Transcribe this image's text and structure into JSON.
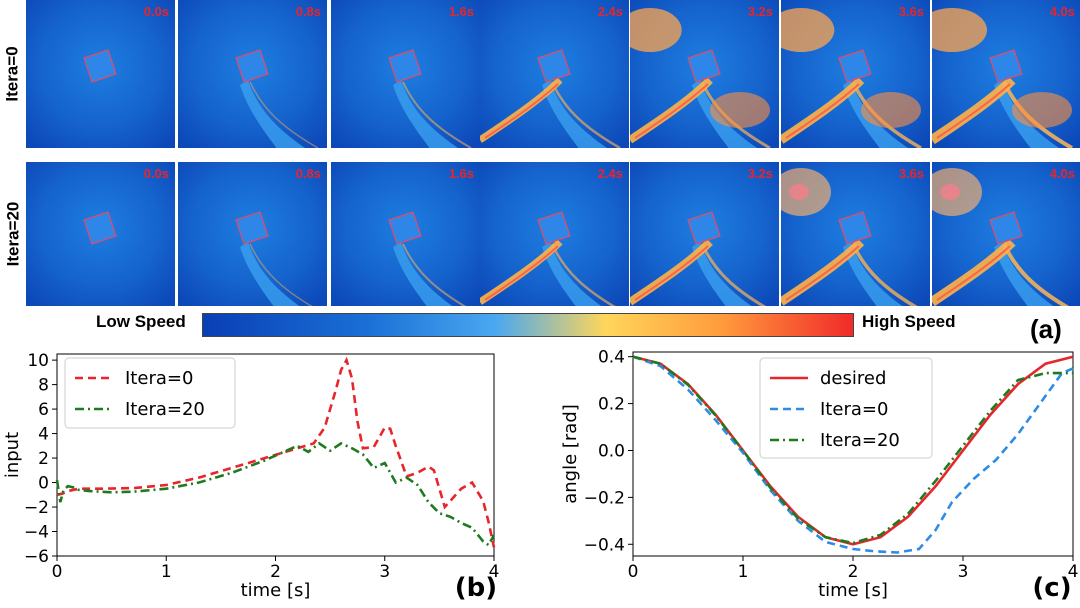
{
  "sim": {
    "rows": [
      {
        "label": "Itera=0",
        "times": [
          "0.0s",
          "0.8s",
          "1.6s",
          "2.4s",
          "3.2s",
          "3.6s",
          "4.0s"
        ]
      },
      {
        "label": "Itera=20",
        "times": [
          "0.0s",
          "0.8s",
          "1.6s",
          "2.4s",
          "3.2s",
          "3.6s",
          "4.0s"
        ]
      }
    ],
    "colorbar": {
      "low": "Low Speed",
      "high": "High Speed"
    },
    "panel": "(a)"
  },
  "colors": {
    "red": "#e8252b",
    "blue": "#2f8ce6",
    "green": "#1f7a1f",
    "field": "#0d4cc0"
  },
  "chart_data": [
    {
      "type": "line",
      "panel": "(b)",
      "xlabel": "time [s]",
      "ylabel": "input",
      "xlim": [
        0,
        4
      ],
      "ylim": [
        -6,
        10.5
      ],
      "xticks": [
        "0",
        "1",
        "2",
        "3",
        "4"
      ],
      "yticks": [
        "10",
        "8",
        "6",
        "4",
        "2",
        "0",
        "−2",
        "−4",
        "−6"
      ],
      "legend": "top-left",
      "series": [
        {
          "name": "Itera=0",
          "style": "dashed",
          "color": "#e8252b",
          "x": [
            0,
            0.05,
            0.1,
            0.2,
            0.4,
            0.7,
            1.0,
            1.3,
            1.6,
            1.9,
            2.2,
            2.35,
            2.45,
            2.55,
            2.6,
            2.65,
            2.7,
            2.75,
            2.8,
            2.9,
            3.0,
            3.05,
            3.1,
            3.2,
            3.3,
            3.4,
            3.45,
            3.55,
            3.6,
            3.7,
            3.8,
            3.9,
            3.95,
            4.0
          ],
          "y": [
            -1,
            -0.9,
            -0.7,
            -0.5,
            -0.5,
            -0.45,
            -0.2,
            0.4,
            1.2,
            2.0,
            2.8,
            3.2,
            4.5,
            7.5,
            9.2,
            10,
            8.5,
            5,
            2.8,
            2.9,
            4.5,
            4.4,
            3.0,
            0.5,
            0.8,
            1.3,
            1.0,
            -2.0,
            -1.5,
            -0.5,
            0.0,
            -1.5,
            -3.2,
            -5.3
          ]
        },
        {
          "name": "Itera=20",
          "style": "dashdot",
          "color": "#1f7a1f",
          "x": [
            0,
            0.03,
            0.06,
            0.1,
            0.15,
            0.2,
            0.3,
            0.5,
            0.7,
            1.0,
            1.3,
            1.6,
            1.9,
            2.1,
            2.2,
            2.3,
            2.4,
            2.5,
            2.6,
            2.7,
            2.8,
            2.9,
            3.0,
            3.1,
            3.2,
            3.3,
            3.4,
            3.5,
            3.6,
            3.7,
            3.8,
            3.9,
            3.95,
            4.0
          ],
          "y": [
            0.2,
            -1.6,
            -0.6,
            -0.3,
            -0.4,
            -0.6,
            -0.7,
            -0.8,
            -0.75,
            -0.5,
            0.0,
            0.8,
            1.8,
            2.6,
            3.0,
            2.5,
            3.2,
            2.6,
            3.2,
            2.8,
            2.3,
            1.2,
            1.6,
            0.0,
            0.4,
            -0.2,
            -1.6,
            -2.5,
            -2.8,
            -3.3,
            -3.7,
            -4.8,
            -5.1,
            -4.3
          ]
        }
      ]
    },
    {
      "type": "line",
      "panel": "(c)",
      "xlabel": "time [s]",
      "ylabel": "angle [rad]",
      "xlim": [
        0,
        4
      ],
      "ylim": [
        -0.45,
        0.42
      ],
      "xticks": [
        "0",
        "1",
        "2",
        "3",
        "4"
      ],
      "yticks": [
        "0.4",
        "0.2",
        "0.0",
        "−0.2",
        "−0.4"
      ],
      "legend": "top-center",
      "series": [
        {
          "name": "desired",
          "style": "solid",
          "color": "#e8252b",
          "x": [
            0,
            0.25,
            0.5,
            0.75,
            1.0,
            1.25,
            1.5,
            1.75,
            2.0,
            2.25,
            2.5,
            2.75,
            3.0,
            3.25,
            3.5,
            3.75,
            4.0
          ],
          "y": [
            0.4,
            0.37,
            0.283,
            0.153,
            0.0,
            -0.153,
            -0.283,
            -0.37,
            -0.4,
            -0.37,
            -0.283,
            -0.153,
            0.0,
            0.153,
            0.283,
            0.37,
            0.4
          ]
        },
        {
          "name": "Itera=0",
          "style": "dashed",
          "color": "#2f8ce6",
          "x": [
            0,
            0.25,
            0.5,
            0.75,
            1.0,
            1.25,
            1.5,
            1.75,
            2.0,
            2.2,
            2.4,
            2.6,
            2.75,
            2.9,
            3.1,
            3.3,
            3.5,
            3.7,
            3.9,
            4.0
          ],
          "y": [
            0.4,
            0.36,
            0.26,
            0.13,
            -0.01,
            -0.17,
            -0.3,
            -0.39,
            -0.42,
            -0.43,
            -0.435,
            -0.42,
            -0.34,
            -0.22,
            -0.12,
            -0.04,
            0.07,
            0.2,
            0.33,
            0.35
          ]
        },
        {
          "name": "Itera=20",
          "style": "dashdot",
          "color": "#1f7a1f",
          "x": [
            0,
            0.25,
            0.5,
            0.75,
            1.0,
            1.25,
            1.5,
            1.75,
            2.0,
            2.25,
            2.5,
            2.75,
            3.0,
            3.25,
            3.5,
            3.75,
            4.0
          ],
          "y": [
            0.4,
            0.37,
            0.28,
            0.15,
            0.0,
            -0.16,
            -0.29,
            -0.37,
            -0.395,
            -0.36,
            -0.27,
            -0.13,
            0.02,
            0.17,
            0.3,
            0.33,
            0.33
          ]
        }
      ]
    }
  ]
}
